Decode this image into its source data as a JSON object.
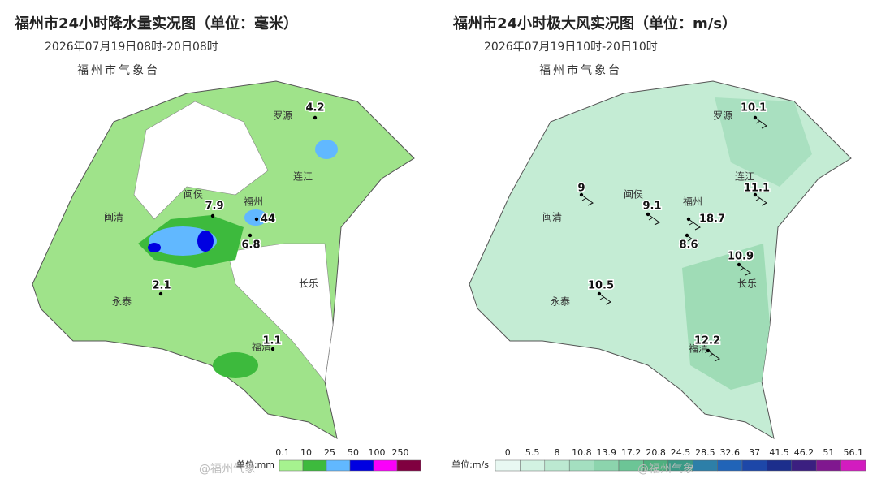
{
  "left": {
    "title": "福州市24小时降水量实况图（单位：毫米）",
    "time": "2026年07月19日08时-20日08时",
    "agency": "福州市气象台",
    "places": [
      "罗源",
      "连江",
      "闽侯",
      "福州",
      "闽清",
      "长乐",
      "永泰",
      "福清"
    ],
    "stations": [
      "4.2",
      "7.9",
      "44",
      "6.8",
      "2.1",
      "1.1"
    ],
    "legend": {
      "unit": "单位:mm",
      "ticks": [
        "0.1",
        "10",
        "25",
        "50",
        "100",
        "250"
      ]
    }
  },
  "right": {
    "title": "福州市24小时极大风实况图（单位：m/s）",
    "time": "2026年07月19日10时-20日10时",
    "agency": "福州市气象台",
    "places": [
      "罗源",
      "连江",
      "闽侯",
      "福州",
      "闽清",
      "长乐",
      "永泰",
      "福清"
    ],
    "stations": [
      "10.1",
      "9",
      "11.1",
      "9.1",
      "18.7",
      "8.6",
      "10.9",
      "10.5",
      "12.2"
    ],
    "legend": {
      "unit": "单位:m/s",
      "ticks": [
        "0",
        "5.5",
        "8",
        "10.8",
        "13.9",
        "17.2",
        "20.8",
        "24.5",
        "28.5",
        "32.6",
        "37",
        "41.5",
        "46.2",
        "51",
        "56.1"
      ]
    }
  },
  "watermark": "@福州气象"
}
